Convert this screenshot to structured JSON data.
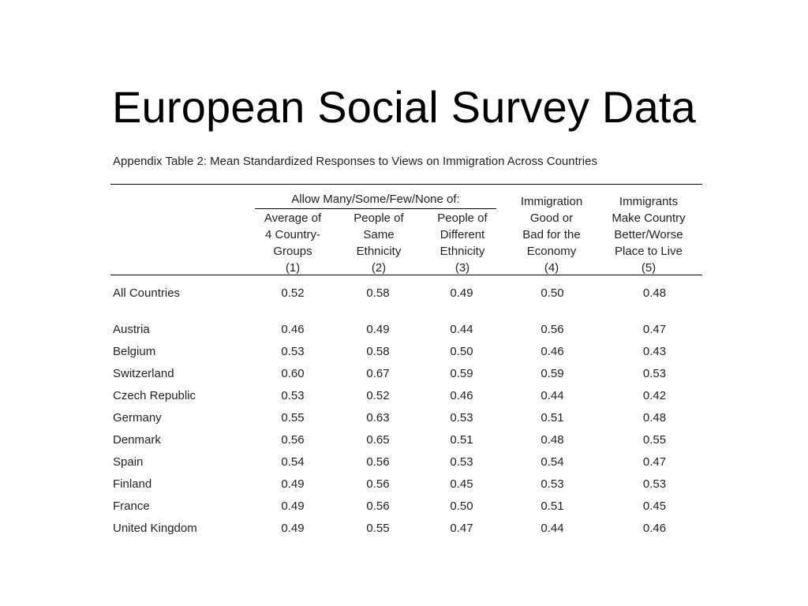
{
  "slide": {
    "title": "European Social Survey Data"
  },
  "table": {
    "caption": "Appendix Table 2: Mean Standardized Responses to Views on Immigration Across Countries",
    "group_header": "Allow Many/Some/Few/None of:",
    "columns": [
      {
        "lines": [
          "Average of",
          "4 Country-",
          "Groups",
          "(1)"
        ]
      },
      {
        "lines": [
          "People of",
          "Same",
          "Ethnicity",
          "(2)"
        ]
      },
      {
        "lines": [
          "People of",
          "Different",
          "Ethnicity",
          "(3)"
        ]
      },
      {
        "lines": [
          "Immigration",
          "Good or",
          "Bad for the",
          "Economy",
          "(4)"
        ]
      },
      {
        "lines": [
          "Immigrants",
          "Make Country",
          "Better/Worse",
          "Place to Live",
          "(5)"
        ]
      }
    ],
    "rows": [
      {
        "country": "All Countries",
        "values": [
          "0.52",
          "0.58",
          "0.49",
          "0.50",
          "0.48"
        ]
      },
      {
        "country": "Austria",
        "values": [
          "0.46",
          "0.49",
          "0.44",
          "0.56",
          "0.47"
        ]
      },
      {
        "country": "Belgium",
        "values": [
          "0.53",
          "0.58",
          "0.50",
          "0.46",
          "0.43"
        ]
      },
      {
        "country": "Switzerland",
        "values": [
          "0.60",
          "0.67",
          "0.59",
          "0.59",
          "0.53"
        ]
      },
      {
        "country": "Czech Republic",
        "values": [
          "0.53",
          "0.52",
          "0.46",
          "0.44",
          "0.42"
        ]
      },
      {
        "country": "Germany",
        "values": [
          "0.55",
          "0.63",
          "0.53",
          "0.51",
          "0.48"
        ]
      },
      {
        "country": "Denmark",
        "values": [
          "0.56",
          "0.65",
          "0.51",
          "0.48",
          "0.55"
        ]
      },
      {
        "country": "Spain",
        "values": [
          "0.54",
          "0.56",
          "0.53",
          "0.54",
          "0.47"
        ]
      },
      {
        "country": "Finland",
        "values": [
          "0.49",
          "0.56",
          "0.45",
          "0.53",
          "0.53"
        ]
      },
      {
        "country": "France",
        "values": [
          "0.49",
          "0.56",
          "0.50",
          "0.51",
          "0.45"
        ]
      },
      {
        "country": "United Kingdom",
        "values": [
          "0.49",
          "0.55",
          "0.47",
          "0.44",
          "0.46"
        ]
      }
    ]
  }
}
